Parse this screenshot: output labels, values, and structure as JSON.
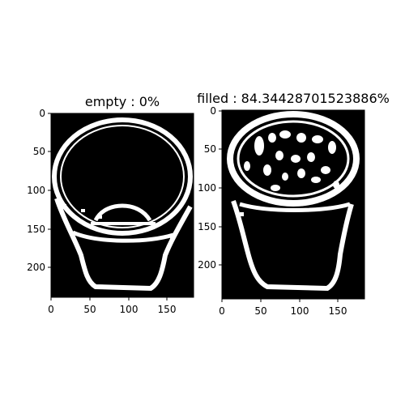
{
  "figure": {
    "panels": [
      {
        "title": "empty : 0%",
        "image_type": "binary mask of an empty cup",
        "xticks": [
          "0",
          "50",
          "100",
          "150"
        ],
        "yticks": [
          "0",
          "50",
          "100",
          "150",
          "200"
        ]
      },
      {
        "title": "filled : 84.34428701523886%",
        "image_type": "binary mask of a filled cup",
        "xticks": [
          "0",
          "50",
          "100",
          "150"
        ],
        "yticks": [
          "0",
          "50",
          "100",
          "150",
          "200"
        ]
      }
    ]
  },
  "colors": {
    "background": "#000000",
    "foreground": "#ffffff",
    "axis": "#000000"
  }
}
